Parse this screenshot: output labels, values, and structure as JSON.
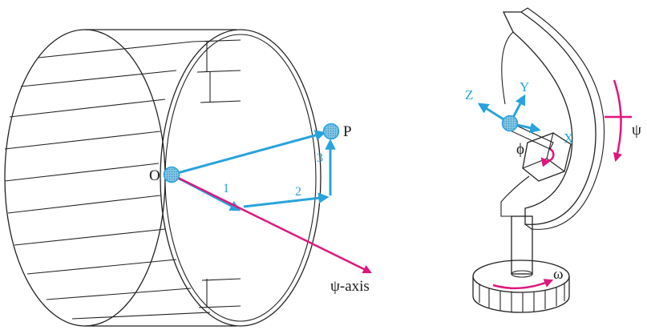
{
  "colors": {
    "vector_blue": "#29a3dc",
    "axis_magenta": "#e0157f",
    "line_black": "#222222",
    "background": "#ffffff"
  },
  "left_diagram": {
    "origin_label": "O",
    "point_label": "P",
    "step_labels": [
      "1",
      "2",
      "3"
    ],
    "axis_label": "ψ-axis"
  },
  "right_diagram": {
    "axis_labels": {
      "z": "Z",
      "y": "Y",
      "x": "X"
    },
    "phi_label": "ϕ",
    "psi_label": "ψ",
    "omega_label": "ω"
  }
}
